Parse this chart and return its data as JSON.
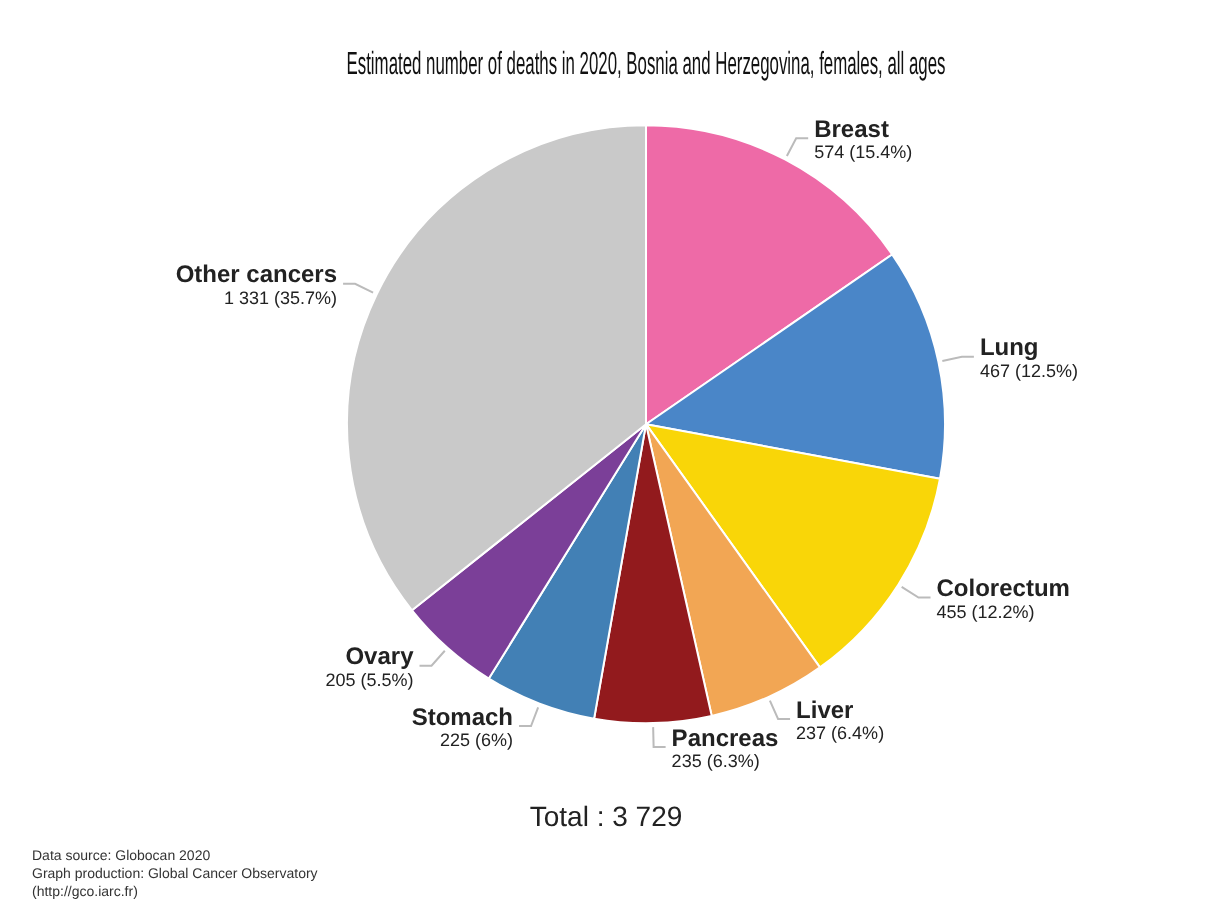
{
  "chart_data": {
    "type": "pie",
    "title": "Estimated number of deaths in 2020, Bosnia and Herzegovina, females, all ages",
    "categories": [
      "Breast",
      "Lung",
      "Colorectum",
      "Liver",
      "Pancreas",
      "Stomach",
      "Ovary",
      "Other cancers"
    ],
    "values": [
      574,
      467,
      455,
      237,
      235,
      225,
      205,
      1331
    ],
    "value_labels": [
      "574 (15.4%)",
      "467 (12.5%)",
      "455 (12.2%)",
      "237 (6.4%)",
      "235 (6.3%)",
      "225 (6%)",
      "205 (5.5%)",
      "1 331 (35.7%)"
    ],
    "colors": [
      "#ee6aa7",
      "#4a86c8",
      "#f9d608",
      "#f2a654",
      "#921a1d",
      "#4280b5",
      "#7b3f98",
      "#c9c9c9"
    ],
    "annotations": [
      "Total : 3 729",
      "Data source: Globocan 2020\nGraph production: Global Cancer Observatory (http://gco.iarc.fr)"
    ],
    "legend": false
  }
}
